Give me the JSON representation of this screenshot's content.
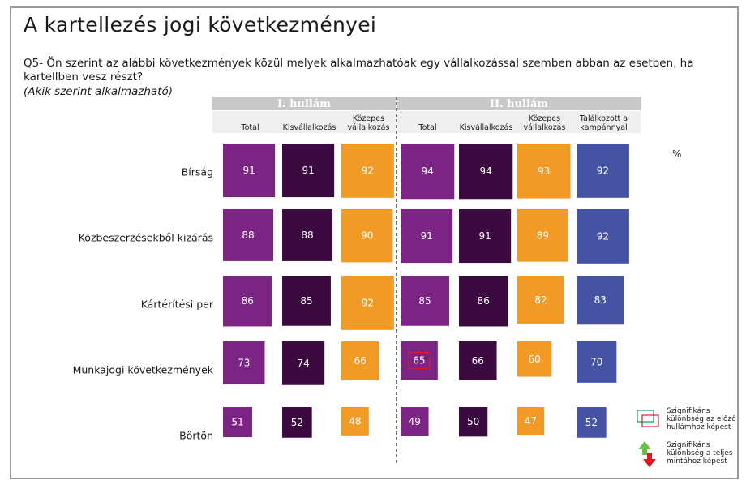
{
  "title": "A kartellezés jogi következményei",
  "question": "Q5- Ön szerint az alábbi következmények közül melyek alkalmazhatóak egy vállalkozással szemben abban az esetben, ha kartellben vesz részt?",
  "subtitle": "(Akik szerint alkalmazható)",
  "unit": "%",
  "colors": {
    "total": "#7b2483",
    "kis": "#3a0a40",
    "kozepes": "#f29a26",
    "talalkozott": "#4553a5",
    "header_bg": "#c8c8c8",
    "subheader_bg": "#efefef",
    "marker": "#d0202a"
  },
  "legend": {
    "significant_prev": "Szignifikáns különbség az előző hullámhoz képest",
    "significant_total": "Szignifikáns különbség a teljes mintához képest"
  },
  "chart_data": {
    "type": "table",
    "waves": [
      {
        "label": "I. hullám",
        "columns": [
          "Total",
          "Kisvállalkozás",
          "Közepes vállalkozás"
        ]
      },
      {
        "label": "II. hullám",
        "columns": [
          "Total",
          "Kisvállalkozás",
          "Közepes vállalkozás",
          "Találkozott a kampánnyal"
        ]
      }
    ],
    "rows": [
      {
        "label": "Bírság",
        "wave1": [
          91,
          91,
          92
        ],
        "wave2": [
          94,
          94,
          93,
          92
        ]
      },
      {
        "label": "Közbeszerzésekből kizárás",
        "wave1": [
          88,
          88,
          90
        ],
        "wave2": [
          91,
          91,
          89,
          92
        ]
      },
      {
        "label": "Kártérítési per",
        "wave1": [
          86,
          85,
          92
        ],
        "wave2": [
          85,
          86,
          82,
          83
        ]
      },
      {
        "label": "Munkajogi következmények",
        "wave1": [
          73,
          74,
          66
        ],
        "wave2": [
          65,
          66,
          60,
          70
        ]
      },
      {
        "label": "Börtön",
        "wave1": [
          51,
          52,
          48
        ],
        "wave2": [
          49,
          50,
          47,
          52
        ]
      }
    ],
    "highlighted": [
      {
        "row": "Munkajogi következmények",
        "wave": "II. hullám",
        "column": "Total",
        "value": 65
      }
    ]
  }
}
